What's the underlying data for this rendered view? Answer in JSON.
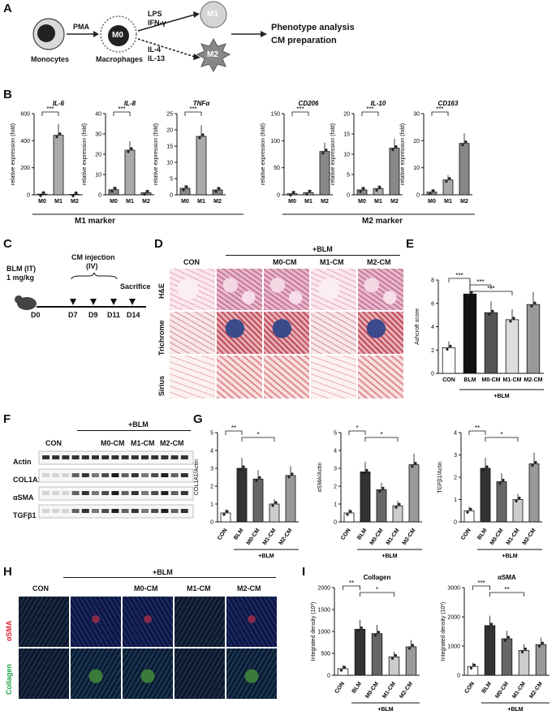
{
  "panels": {
    "A": "A",
    "B": "B",
    "C": "C",
    "D": "D",
    "E": "E",
    "F": "F",
    "G": "G",
    "H": "H",
    "I": "I"
  },
  "panelA": {
    "monocytes": "Monocytes",
    "macrophages": "Macrophages",
    "m0": "M0",
    "m1": "M1",
    "m2": "M2",
    "pma": "PMA",
    "lps": "LPS",
    "ifn": "IFN-γ",
    "il4": "IL-4",
    "il13": "IL-13",
    "out1": "Phenotype analysis",
    "out2": "CM preparation"
  },
  "panelB": {
    "ylabel": "relative expression (fold)",
    "sig": "***",
    "m1_marker": "M1 marker",
    "m2_marker": "M2 marker"
  },
  "panelC": {
    "blm": "BLM (IT)",
    "dose": "1 mg/kg",
    "cm": "CM injection",
    "iv": "(IV)",
    "sacrifice": "Sacrifice",
    "days": [
      "D0",
      "D7",
      "D9",
      "D11",
      "D14"
    ]
  },
  "panelD": {
    "blm": "+BLM",
    "cols": [
      "CON",
      "M0-CM",
      "M1-CM",
      "M2-CM"
    ],
    "rows": [
      "H&E",
      "Trichrome",
      "Sirius"
    ]
  },
  "panelF": {
    "blm": "+BLM",
    "groups": [
      "CON",
      "M0-CM",
      "M1-CM",
      "M2-CM"
    ],
    "rows": [
      "Actin",
      "COL1A1",
      "αSMA",
      "TGFβ1"
    ]
  },
  "panelH": {
    "blm": "+BLM",
    "cols": [
      "CON",
      "M0-CM",
      "M1-CM",
      "M2-CM"
    ],
    "rows": [
      "αSMA",
      "Collagen"
    ],
    "row_colors": [
      "#e0223a",
      "#1fa34a"
    ]
  },
  "chart_data": [
    {
      "id": "B-IL6",
      "type": "bar",
      "title": "IL-6",
      "categories": [
        "M0",
        "M1",
        "M2"
      ],
      "values": [
        5,
        440,
        3
      ],
      "ylim": [
        0,
        600
      ],
      "yticks": [
        0,
        200,
        400,
        600
      ],
      "ylabel": "relative expression (fold)",
      "annotations": [
        "***"
      ]
    },
    {
      "id": "B-IL8",
      "type": "bar",
      "title": "IL-8",
      "categories": [
        "M0",
        "M1",
        "M2"
      ],
      "values": [
        2.5,
        22,
        1
      ],
      "ylim": [
        0,
        40
      ],
      "yticks": [
        0,
        10,
        20,
        30,
        40
      ],
      "ylabel": "relative expression (fold)",
      "annotations": [
        "***"
      ]
    },
    {
      "id": "B-TNFa",
      "type": "bar",
      "title": "TNFα",
      "categories": [
        "M0",
        "M1",
        "M2"
      ],
      "values": [
        2,
        18,
        1.5
      ],
      "ylim": [
        0,
        25
      ],
      "yticks": [
        0,
        5,
        10,
        15,
        20,
        25
      ],
      "ylabel": "relative expression (fold)",
      "annotations": [
        "***"
      ]
    },
    {
      "id": "B-CD206",
      "type": "bar",
      "title": "CD206",
      "categories": [
        "M0",
        "M1",
        "M2"
      ],
      "values": [
        2,
        4,
        80
      ],
      "ylim": [
        0,
        150
      ],
      "yticks": [
        0,
        50,
        100,
        150
      ],
      "ylabel": "relative expression (fold)",
      "annotations": [
        "***"
      ]
    },
    {
      "id": "B-IL10",
      "type": "bar",
      "title": "IL-10",
      "categories": [
        "M0",
        "M1",
        "M2"
      ],
      "values": [
        1.2,
        1.5,
        11.5
      ],
      "ylim": [
        0,
        20
      ],
      "yticks": [
        0,
        5,
        10,
        15,
        20
      ],
      "ylabel": "relative expression (fold)",
      "annotations": [
        "***"
      ]
    },
    {
      "id": "B-CD163",
      "type": "bar",
      "title": "CD163",
      "categories": [
        "M0",
        "M1",
        "M2"
      ],
      "values": [
        1,
        5.5,
        19
      ],
      "ylim": [
        0,
        30
      ],
      "yticks": [
        0,
        10,
        20,
        30
      ],
      "ylabel": "relative expression (fold)",
      "annotations": [
        "***"
      ]
    },
    {
      "id": "E",
      "type": "bar",
      "categories": [
        "CON",
        "BLM",
        "M0-CM",
        "M1-CM",
        "M2-CM"
      ],
      "values": [
        2.2,
        6.8,
        5.2,
        4.6,
        5.9
      ],
      "ylim": [
        0,
        8
      ],
      "yticks": [
        0,
        2,
        4,
        6,
        8
      ],
      "ylabel": "Ashcroft score",
      "group_label": "+BLM",
      "annotations": [
        "***",
        "***",
        "***"
      ]
    },
    {
      "id": "G-COL1A1",
      "type": "bar",
      "categories": [
        "CON",
        "BLM",
        "M0-CM",
        "M1-CM",
        "M2-CM"
      ],
      "values": [
        0.5,
        3.0,
        2.4,
        1.0,
        2.6
      ],
      "ylim": [
        0,
        5
      ],
      "yticks": [
        0,
        1,
        2,
        3,
        4,
        5
      ],
      "ylabel": "COL1A1/Actin",
      "group_label": "+BLM",
      "annotations": [
        "**",
        "*"
      ]
    },
    {
      "id": "G-aSMA",
      "type": "bar",
      "categories": [
        "CON",
        "BLM",
        "M0-CM",
        "M1-CM",
        "M2-CM"
      ],
      "values": [
        0.5,
        2.8,
        1.8,
        0.9,
        3.2
      ],
      "ylim": [
        0,
        5
      ],
      "yticks": [
        0,
        1,
        2,
        3,
        4,
        5
      ],
      "ylabel": "αSMA/Actin",
      "group_label": "+BLM",
      "annotations": [
        "*",
        "*"
      ]
    },
    {
      "id": "G-TGFb1",
      "type": "bar",
      "categories": [
        "CON",
        "BLM",
        "M0-CM",
        "M1-CM",
        "M2-CM"
      ],
      "values": [
        0.5,
        2.4,
        1.8,
        1.0,
        2.6
      ],
      "ylim": [
        0,
        4
      ],
      "yticks": [
        0,
        1,
        2,
        3,
        4
      ],
      "ylabel": "TGFβ1/Actin",
      "group_label": "+BLM",
      "annotations": [
        "**",
        "*"
      ]
    },
    {
      "id": "I-Collagen",
      "type": "bar",
      "title": "Collagen",
      "categories": [
        "CON",
        "BLM",
        "M0-CM",
        "M1-CM",
        "M2-CM"
      ],
      "values": [
        150,
        1050,
        950,
        420,
        650
      ],
      "ylim": [
        0,
        2000
      ],
      "yticks": [
        0,
        500,
        1000,
        1500,
        2000
      ],
      "ylabel": "Integrated density (10³)",
      "group_label": "+BLM",
      "annotations": [
        "**",
        "*"
      ]
    },
    {
      "id": "I-aSMA",
      "type": "bar",
      "title": "αSMA",
      "categories": [
        "CON",
        "BLM",
        "M0-CM",
        "M1-CM",
        "M2-CM"
      ],
      "values": [
        300,
        1700,
        1250,
        850,
        1050
      ],
      "ylim": [
        0,
        3000
      ],
      "yticks": [
        0,
        1000,
        2000,
        3000
      ],
      "ylabel": "Integrated density (10³)",
      "group_label": "+BLM",
      "annotations": [
        "***",
        "**"
      ]
    }
  ]
}
